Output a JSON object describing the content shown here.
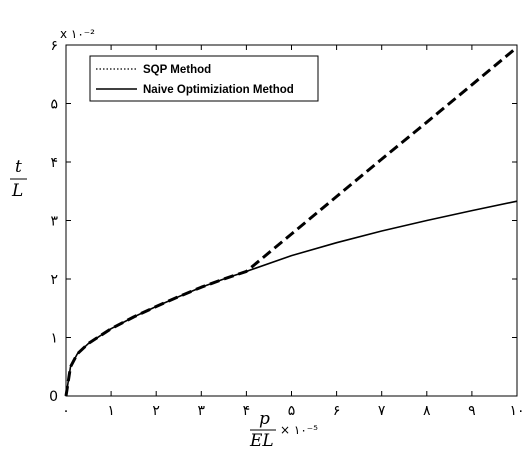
{
  "chart_data": {
    "type": "line",
    "x_ticks": [
      "۰",
      "۱",
      "۲",
      "۳",
      "۴",
      "۵",
      "۶",
      "۷",
      "۸",
      "۹",
      "۱۰"
    ],
    "y_ticks": [
      "0",
      "۱",
      "۲",
      "۳",
      "۴",
      "۵",
      "۶"
    ],
    "xlim": [
      0,
      10
    ],
    "ylim": [
      0,
      6
    ],
    "y_multiplier": "x ۱۰⁻²",
    "ylabel_num": "t",
    "ylabel_den": "L",
    "xlabel_num": "p",
    "xlabel_den": "EL",
    "xlabel_multiplier": "× ۱۰⁻⁵",
    "legend_position": "top-left",
    "series": [
      {
        "name": "SQP Method",
        "style": "dotted",
        "x": [
          0,
          0.1,
          0.25,
          0.5,
          1,
          1.5,
          2,
          2.5,
          3,
          3.5,
          4,
          5,
          6,
          7,
          8,
          9,
          10
        ],
        "y": [
          0,
          0.5,
          0.72,
          0.9,
          1.15,
          1.35,
          1.53,
          1.7,
          1.86,
          2.0,
          2.13,
          2.77,
          3.41,
          4.05,
          4.68,
          5.32,
          5.96
        ]
      },
      {
        "name": "Naive Optimiziation Method",
        "style": "solid",
        "x": [
          0,
          0.1,
          0.25,
          0.5,
          1,
          1.5,
          2,
          2.5,
          3,
          3.5,
          4,
          5,
          6,
          7,
          8,
          9,
          10
        ],
        "y": [
          0,
          0.5,
          0.72,
          0.9,
          1.15,
          1.35,
          1.53,
          1.7,
          1.86,
          2.0,
          2.13,
          2.4,
          2.62,
          2.82,
          3.0,
          3.17,
          3.33
        ]
      }
    ]
  }
}
